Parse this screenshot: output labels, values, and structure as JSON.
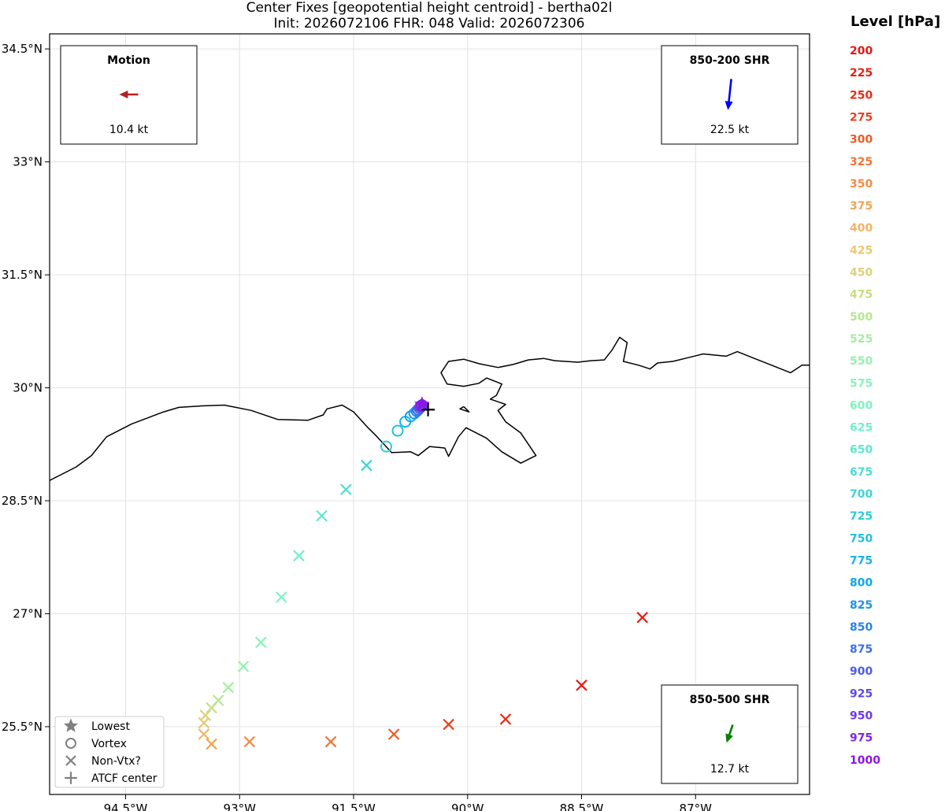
{
  "chart_data": {
    "type": "scatter",
    "title": "Center Fixes [geopotential height centroid] - bertha02l",
    "subtitle": "Init: 2026072106  FHR: 048  Valid: 2026072306",
    "xlim": [
      -95.5,
      -85.5
    ],
    "ylim": [
      24.6,
      34.7
    ],
    "x_ticks": [
      {
        "value": -94.5,
        "label": "94.5°W"
      },
      {
        "value": -93.0,
        "label": "93°W"
      },
      {
        "value": -91.5,
        "label": "91.5°W"
      },
      {
        "value": -90.0,
        "label": "90°W"
      },
      {
        "value": -88.5,
        "label": "88.5°W"
      },
      {
        "value": -87.0,
        "label": "87°W"
      }
    ],
    "y_ticks": [
      {
        "value": 34.5,
        "label": "34.5°N"
      },
      {
        "value": 33.0,
        "label": "33°N"
      },
      {
        "value": 31.5,
        "label": "31.5°N"
      },
      {
        "value": 30.0,
        "label": "30°N"
      },
      {
        "value": 28.5,
        "label": "28.5°N"
      },
      {
        "value": 27.0,
        "label": "27°N"
      },
      {
        "value": 25.5,
        "label": "25.5°N"
      }
    ],
    "grid": true,
    "levels_title": "Level [hPa]",
    "levels": [
      {
        "label": "200",
        "color": "#e8150f"
      },
      {
        "label": "225",
        "color": "#ea1c12"
      },
      {
        "label": "250",
        "color": "#ec2a15"
      },
      {
        "label": "275",
        "color": "#ee3f1c"
      },
      {
        "label": "300",
        "color": "#f05a26"
      },
      {
        "label": "325",
        "color": "#f27435"
      },
      {
        "label": "350",
        "color": "#f48c47"
      },
      {
        "label": "375",
        "color": "#f3a257"
      },
      {
        "label": "400",
        "color": "#f2b466"
      },
      {
        "label": "425",
        "color": "#eec571"
      },
      {
        "label": "450",
        "color": "#dcd179"
      },
      {
        "label": "475",
        "color": "#c7de80"
      },
      {
        "label": "500",
        "color": "#b4e890"
      },
      {
        "label": "525",
        "color": "#a4ee9e"
      },
      {
        "label": "550",
        "color": "#97f1ab"
      },
      {
        "label": "575",
        "color": "#8cf3b7"
      },
      {
        "label": "600",
        "color": "#7ff3c2"
      },
      {
        "label": "625",
        "color": "#72efca"
      },
      {
        "label": "650",
        "color": "#5fe8d0"
      },
      {
        "label": "675",
        "color": "#4ddfd4"
      },
      {
        "label": "700",
        "color": "#3ed4d8"
      },
      {
        "label": "725",
        "color": "#2ecbdc"
      },
      {
        "label": "750",
        "color": "#22c0e0"
      },
      {
        "label": "775",
        "color": "#18b4e4"
      },
      {
        "label": "800",
        "color": "#0ea7e6"
      },
      {
        "label": "825",
        "color": "#1996e8"
      },
      {
        "label": "850",
        "color": "#2a83ea"
      },
      {
        "label": "875",
        "color": "#3a6feb"
      },
      {
        "label": "900",
        "color": "#4b5cec"
      },
      {
        "label": "925",
        "color": "#5c49ec"
      },
      {
        "label": "950",
        "color": "#6d37ec"
      },
      {
        "label": "975",
        "color": "#7c27ea"
      },
      {
        "label": "1000",
        "color": "#8a17e6"
      }
    ],
    "fixes": [
      {
        "level": "200",
        "marker": "x",
        "lon": -87.7,
        "lat": 26.95,
        "color": "#e8150f"
      },
      {
        "level": "225",
        "marker": "x",
        "lon": -88.5,
        "lat": 26.05,
        "color": "#ea1c12"
      },
      {
        "level": "250",
        "marker": "x",
        "lon": -89.5,
        "lat": 25.6,
        "color": "#ec2a15"
      },
      {
        "level": "275",
        "marker": "x",
        "lon": -90.25,
        "lat": 25.53,
        "color": "#ee3f1c"
      },
      {
        "level": "300",
        "marker": "x",
        "lon": -90.97,
        "lat": 25.4,
        "color": "#f05a26"
      },
      {
        "level": "325",
        "marker": "x",
        "lon": -91.8,
        "lat": 25.3,
        "color": "#f27435"
      },
      {
        "level": "350",
        "marker": "x",
        "lon": -92.87,
        "lat": 25.3,
        "color": "#f48c47"
      },
      {
        "level": "375",
        "marker": "x",
        "lon": -93.37,
        "lat": 25.27,
        "color": "#f3a257"
      },
      {
        "level": "400",
        "marker": "x",
        "lon": -93.47,
        "lat": 25.4,
        "color": "#f2b466"
      },
      {
        "level": "425",
        "marker": "x",
        "lon": -93.47,
        "lat": 25.55,
        "color": "#eec571"
      },
      {
        "level": "450",
        "marker": "x",
        "lon": -93.45,
        "lat": 25.65,
        "color": "#dcd179"
      },
      {
        "level": "475",
        "marker": "x",
        "lon": -93.37,
        "lat": 25.75,
        "color": "#c7de80"
      },
      {
        "level": "500",
        "marker": "x",
        "lon": -93.28,
        "lat": 25.85,
        "color": "#b4e890"
      },
      {
        "level": "525",
        "marker": "x",
        "lon": -93.15,
        "lat": 26.02,
        "color": "#a4ee9e"
      },
      {
        "level": "550",
        "marker": "x",
        "lon": -92.95,
        "lat": 26.3,
        "color": "#97f1ab"
      },
      {
        "level": "575",
        "marker": "x",
        "lon": -92.72,
        "lat": 26.62,
        "color": "#8cf3b7"
      },
      {
        "level": "600",
        "marker": "x",
        "lon": -92.45,
        "lat": 27.22,
        "color": "#7ff3c2"
      },
      {
        "level": "625",
        "marker": "x",
        "lon": -92.22,
        "lat": 27.77,
        "color": "#72efca"
      },
      {
        "level": "650",
        "marker": "x",
        "lon": -91.92,
        "lat": 28.3,
        "color": "#5fe8d0"
      },
      {
        "level": "675",
        "marker": "x",
        "lon": -91.6,
        "lat": 28.65,
        "color": "#4ddfd4"
      },
      {
        "level": "700",
        "marker": "x",
        "lon": -91.33,
        "lat": 28.97,
        "color": "#3ed4d8"
      },
      {
        "level": "725",
        "marker": "o",
        "lon": -91.07,
        "lat": 29.22,
        "color": "#2ecbdc"
      },
      {
        "level": "750",
        "marker": "o",
        "lon": -90.92,
        "lat": 29.43,
        "color": "#22c0e0"
      },
      {
        "level": "775",
        "marker": "o",
        "lon": -90.82,
        "lat": 29.55,
        "color": "#18b4e4"
      },
      {
        "level": "800",
        "marker": "o",
        "lon": -90.75,
        "lat": 29.62,
        "color": "#0ea7e6"
      },
      {
        "level": "825",
        "marker": "o",
        "lon": -90.7,
        "lat": 29.66,
        "color": "#1996e8"
      },
      {
        "level": "850",
        "marker": "o",
        "lon": -90.67,
        "lat": 29.69,
        "color": "#2a83ea"
      },
      {
        "level": "875",
        "marker": "o",
        "lon": -90.65,
        "lat": 29.71,
        "color": "#3a6feb"
      },
      {
        "level": "900",
        "marker": "o",
        "lon": -90.63,
        "lat": 29.73,
        "color": "#4b5cec"
      },
      {
        "level": "925",
        "marker": "o",
        "lon": -90.62,
        "lat": 29.75,
        "color": "#5c49ec"
      },
      {
        "level": "950",
        "marker": "o",
        "lon": -90.61,
        "lat": 29.76,
        "color": "#6d37ec"
      },
      {
        "level": "975",
        "marker": "o",
        "lon": -90.6,
        "lat": 29.77,
        "color": "#7c27ea"
      },
      {
        "level": "1000",
        "marker": "star",
        "lon": -90.6,
        "lat": 29.78,
        "color": "#8a17e6"
      }
    ],
    "atcf_center": {
      "lon": -90.52,
      "lat": 29.71
    },
    "legend": {
      "placement": "bottom-left",
      "entries": [
        {
          "label": "Lowest",
          "marker": "star"
        },
        {
          "label": "Vortex",
          "marker": "o"
        },
        {
          "label": "Non-Vtx?",
          "marker": "x"
        },
        {
          "label": "ATCF center",
          "marker": "plus"
        }
      ]
    },
    "insets": [
      {
        "title": "Motion",
        "value": "10.4 kt",
        "placement": "top-left",
        "arrow_color": "#b22222",
        "dir_deg": 270,
        "length": 0.55
      },
      {
        "title": "850-200 SHR",
        "value": "22.5 kt",
        "placement": "top-right",
        "arrow_color": "#0000ff",
        "dir_deg": 186,
        "length": 0.9
      },
      {
        "title": "850-500 SHR",
        "value": "12.7 kt",
        "placement": "bottom-right",
        "arrow_color": "#008000",
        "dir_deg": 199,
        "length": 0.55
      }
    ],
    "coastline": [
      [
        [
          -95.5,
          28.77
        ],
        [
          -95.15,
          28.95
        ],
        [
          -94.95,
          29.1
        ],
        [
          -94.75,
          29.35
        ],
        [
          -94.42,
          29.52
        ],
        [
          -94.0,
          29.68
        ],
        [
          -93.8,
          29.74
        ],
        [
          -93.5,
          29.76
        ],
        [
          -93.2,
          29.77
        ],
        [
          -92.85,
          29.7
        ],
        [
          -92.5,
          29.58
        ],
        [
          -92.1,
          29.57
        ],
        [
          -91.9,
          29.64
        ],
        [
          -91.85,
          29.72
        ],
        [
          -91.65,
          29.77
        ],
        [
          -91.5,
          29.68
        ],
        [
          -91.32,
          29.48
        ],
        [
          -91.2,
          29.36
        ],
        [
          -91.0,
          29.14
        ],
        [
          -90.75,
          29.15
        ],
        [
          -90.65,
          29.1
        ],
        [
          -90.5,
          29.22
        ],
        [
          -90.3,
          29.2
        ],
        [
          -90.25,
          29.09
        ],
        [
          -90.12,
          29.35
        ],
        [
          -90.02,
          29.47
        ],
        [
          -89.75,
          29.33
        ],
        [
          -89.55,
          29.15
        ],
        [
          -89.3,
          29.0
        ],
        [
          -89.1,
          29.1
        ],
        [
          -89.3,
          29.4
        ],
        [
          -89.5,
          29.55
        ],
        [
          -89.6,
          29.7
        ],
        [
          -89.5,
          29.78
        ],
        [
          -89.7,
          29.85
        ],
        [
          -89.62,
          29.9
        ],
        [
          -89.55,
          30.05
        ],
        [
          -89.75,
          30.13
        ],
        [
          -89.85,
          30.06
        ],
        [
          -90.05,
          30.02
        ],
        [
          -90.27,
          30.05
        ],
        [
          -90.35,
          30.2
        ],
        [
          -90.25,
          30.35
        ],
        [
          -90.05,
          30.38
        ],
        [
          -89.85,
          30.32
        ],
        [
          -89.6,
          30.27
        ],
        [
          -89.4,
          30.31
        ],
        [
          -89.2,
          30.37
        ],
        [
          -89.0,
          30.39
        ],
        [
          -88.85,
          30.36
        ],
        [
          -88.55,
          30.34
        ],
        [
          -88.38,
          30.36
        ],
        [
          -88.2,
          30.37
        ],
        [
          -88.1,
          30.5
        ],
        [
          -88.0,
          30.67
        ],
        [
          -87.9,
          30.6
        ],
        [
          -87.95,
          30.35
        ],
        [
          -87.75,
          30.3
        ],
        [
          -87.6,
          30.25
        ],
        [
          -87.5,
          30.33
        ],
        [
          -87.3,
          30.35
        ],
        [
          -87.1,
          30.4
        ],
        [
          -86.9,
          30.45
        ],
        [
          -86.6,
          30.42
        ],
        [
          -86.45,
          30.48
        ],
        [
          -86.2,
          30.38
        ],
        [
          -86.0,
          30.3
        ],
        [
          -85.75,
          30.2
        ],
        [
          -85.6,
          30.3
        ],
        [
          -85.5,
          30.3
        ]
      ],
      [
        [
          -90.05,
          29.75
        ],
        [
          -90.02,
          29.72
        ],
        [
          -89.98,
          29.68
        ],
        [
          -90.1,
          29.72
        ],
        [
          -90.05,
          29.75
        ]
      ]
    ]
  }
}
